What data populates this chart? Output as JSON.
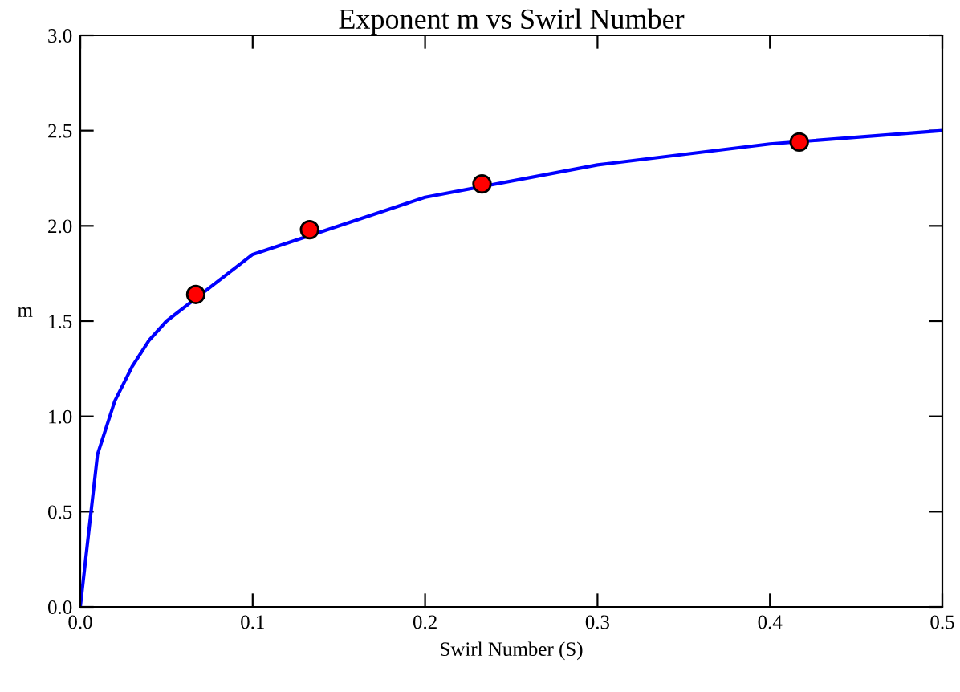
{
  "chart_data": {
    "type": "line",
    "title": "Exponent m vs Swirl Number",
    "xlabel": "Swirl Number (S)",
    "ylabel": "m",
    "series": [
      {
        "color": "#0000ff",
        "x": [
          0,
          0.01,
          0.02,
          0.03,
          0.04,
          0.05,
          0.1,
          0.2,
          0.3,
          0.4,
          0.5
        ],
        "values": [
          0,
          0.8,
          1.08,
          1.26,
          1.4,
          1.5,
          1.85,
          2.15,
          2.32,
          2.43,
          2.5
        ]
      },
      {
        "type": "scatter",
        "color": "#ff0000",
        "marker": "circle",
        "x": [
          0.067,
          0.133,
          0.233,
          0.417
        ],
        "values": [
          1.64,
          1.98,
          2.22,
          2.44
        ]
      }
    ],
    "xlim": [
      0,
      0.5
    ],
    "ylim": [
      0,
      3.0
    ],
    "xticks": [
      {
        "value": 0,
        "label": "0.0"
      },
      0.1,
      0.2,
      0.3,
      0.4,
      0.5
    ],
    "yticks": [
      {
        "value": 0,
        "label": "0.0"
      },
      0.5,
      {
        "value": 1,
        "label": "1.0"
      },
      1.5,
      {
        "value": 2,
        "label": "2.0"
      },
      2.5,
      {
        "value": 3,
        "label": "3.0"
      }
    ],
    "grid": false,
    "legend": false
  }
}
